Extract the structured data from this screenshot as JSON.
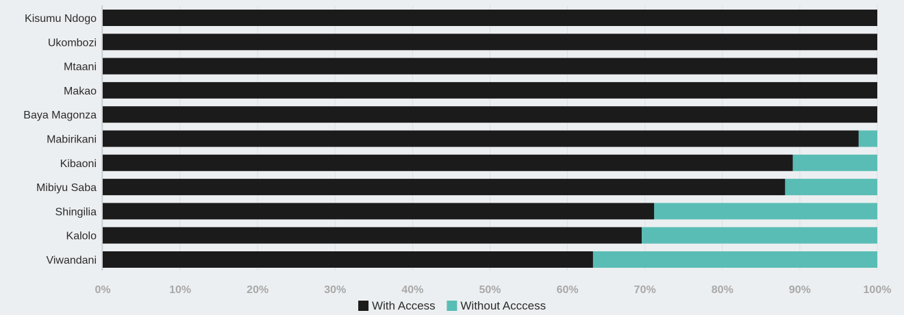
{
  "chart_data": {
    "type": "bar",
    "orientation": "horizontal",
    "stacked": true,
    "categories": [
      "Kisumu Ndogo",
      "Ukombozi",
      "Mtaani",
      "Makao",
      "Baya Magonza",
      "Mabirikani",
      "Kibaoni",
      "Mibiyu Saba",
      "Shingilia",
      "Kalolo",
      "Viwandani"
    ],
    "series": [
      {
        "name": "With Access",
        "color": "#1b1b1b",
        "values": [
          100,
          100,
          100,
          100,
          100,
          97.6,
          89.1,
          88.1,
          71.2,
          69.6,
          63.3
        ]
      },
      {
        "name": "Without Acccess",
        "color": "#59bdb5",
        "values": [
          0,
          0,
          0,
          0,
          0,
          2.4,
          10.9,
          11.9,
          28.8,
          30.4,
          36.7
        ]
      }
    ],
    "x_ticks": [
      "0%",
      "10%",
      "20%",
      "30%",
      "40%",
      "50%",
      "60%",
      "70%",
      "80%",
      "90%",
      "100%"
    ],
    "xlim": [
      0,
      100
    ],
    "unit": "%",
    "grid": "vertical",
    "legend_position": "bottom-center",
    "title": "",
    "xlabel": "",
    "ylabel": ""
  }
}
